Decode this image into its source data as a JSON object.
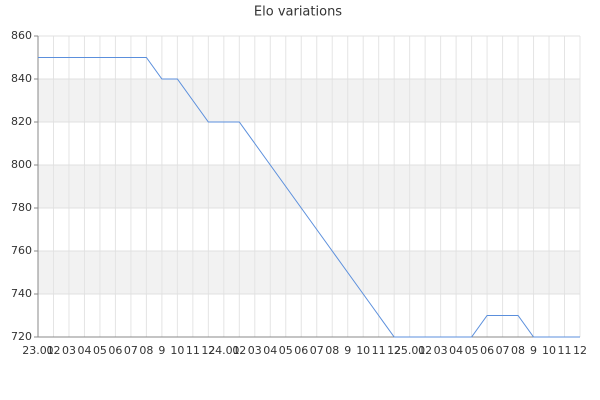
{
  "chart_data": {
    "type": "line",
    "title": "Elo variations",
    "categories": [
      "23.01",
      "02",
      "03",
      "04",
      "05",
      "06",
      "07",
      "08",
      "9",
      "10",
      "11",
      "12",
      "24.01",
      "02",
      "03",
      "04",
      "05",
      "06",
      "07",
      "08",
      "9",
      "10",
      "11",
      "12",
      "25.01",
      "02",
      "03",
      "04",
      "05",
      "06",
      "07",
      "08",
      "9",
      "10",
      "11",
      "12"
    ],
    "values": [
      850,
      850,
      850,
      850,
      850,
      850,
      850,
      850,
      840,
      840,
      830,
      820,
      820,
      820,
      810,
      800,
      790,
      780,
      770,
      760,
      750,
      740,
      730,
      720,
      720,
      720,
      720,
      720,
      720,
      730,
      730,
      730,
      720,
      720,
      720,
      720
    ],
    "color": "#5b8fdc",
    "ylim": [
      720,
      860
    ],
    "yticks": [
      720,
      740,
      760,
      780,
      800,
      820,
      840,
      860
    ],
    "grid": true,
    "bands": true
  }
}
